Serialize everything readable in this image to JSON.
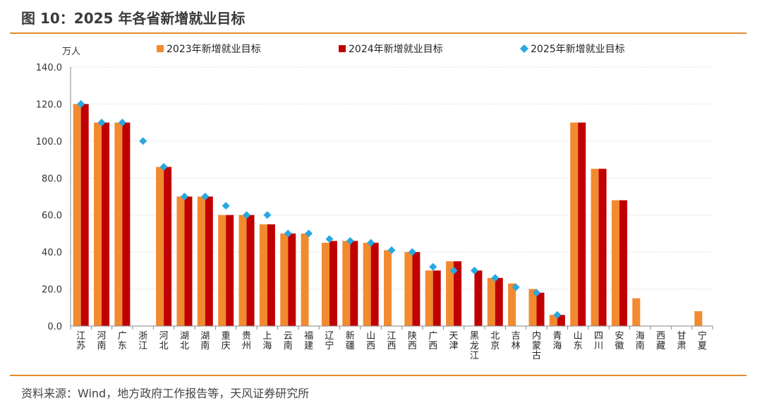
{
  "header": {
    "title": "图 10：2025 年各省新增就业目标"
  },
  "footer": {
    "source": "资料来源：Wind，地方政府工作报告等，天风证券研究所"
  },
  "colors": {
    "accent": "#e48a2e",
    "s2023": "#f28a30",
    "s2024": "#c00000",
    "s2025": "#29a8e0"
  },
  "chart_data": {
    "type": "bar",
    "ylabel": "万人",
    "ylim": [
      0,
      140
    ],
    "yticks": [
      "0.0",
      "20.0",
      "40.0",
      "60.0",
      "80.0",
      "100.0",
      "120.0",
      "140.0"
    ],
    "grid": true,
    "legend": "top",
    "categories": [
      "江苏",
      "河南",
      "广东",
      "浙江",
      "河北",
      "湖北",
      "湖南",
      "重庆",
      "贵州",
      "上海",
      "云南",
      "福建",
      "辽宁",
      "新疆",
      "山西",
      "江西",
      "陕西",
      "广西",
      "天津",
      "黑龙江",
      "北京",
      "吉林",
      "内蒙古",
      "青海",
      "山东",
      "四川",
      "安徽",
      "海南",
      "西藏",
      "甘肃",
      "宁夏"
    ],
    "series": [
      {
        "name": "2023年新增就业目标",
        "kind": "bar",
        "values": [
          120,
          110,
          110,
          null,
          86,
          70,
          70,
          60,
          60,
          55,
          50,
          50,
          45,
          46,
          45,
          41,
          40,
          30,
          35,
          null,
          26,
          23,
          20,
          6,
          110,
          85,
          68,
          15,
          null,
          null,
          8
        ]
      },
      {
        "name": "2024年新增就业目标",
        "kind": "bar",
        "values": [
          120,
          110,
          110,
          null,
          86,
          70,
          70,
          60,
          60,
          55,
          50,
          null,
          46,
          46,
          45,
          null,
          40,
          30,
          35,
          30,
          26,
          null,
          18,
          6,
          110,
          85,
          68,
          null,
          null,
          null,
          null
        ]
      },
      {
        "name": "2025年新增就业目标",
        "kind": "marker",
        "values": [
          120,
          110,
          110,
          100,
          86,
          70,
          70,
          65,
          60,
          60,
          50,
          50,
          47,
          46,
          45,
          41,
          40,
          32,
          30,
          30,
          26,
          21,
          18,
          6,
          null,
          null,
          null,
          null,
          null,
          null,
          null
        ]
      }
    ]
  }
}
